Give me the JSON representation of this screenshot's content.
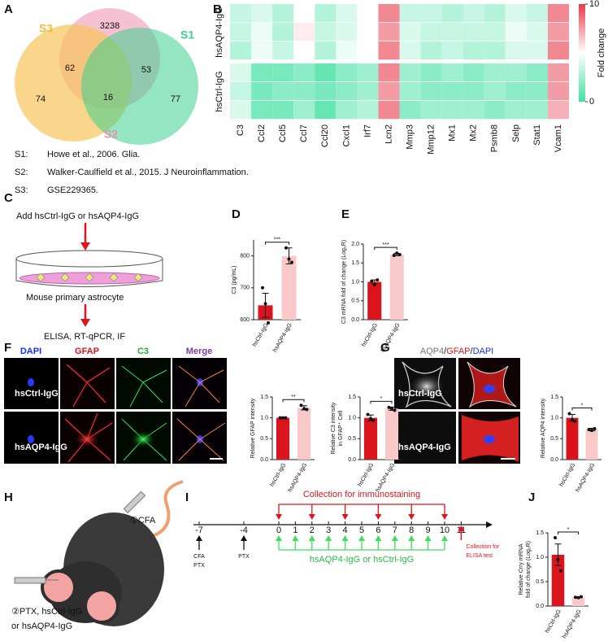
{
  "figure": {
    "panels": [
      "A",
      "B",
      "C",
      "D",
      "E",
      "F",
      "G",
      "H",
      "I",
      "J"
    ],
    "venn": {
      "sets": [
        "S3",
        "S1",
        "S2"
      ],
      "counts": [
        3238,
        62,
        16,
        53,
        74,
        77
      ]
    },
    "notes": [
      {
        "key": "S1:",
        "text": "Howe et al., 2006. Glia."
      },
      {
        "key": "S2:",
        "text": "Walker-Caulfield et al., 2015. J Neuroinflammation."
      },
      {
        "key": "S3:",
        "text": "GSE229365."
      }
    ],
    "panel_c": {
      "top": "Add hsCtrl-IgG or hsAQP4-IgG",
      "middle": "Mouse primary astrocyte",
      "bottom": "ELISA, RT-qPCR, IF"
    },
    "panel_f": {
      "channels": [
        "DAPI",
        "GFAP",
        "C3",
        "Merge"
      ],
      "rows": [
        "hsCtrl-IgG",
        "hsAQP4-IgG"
      ]
    },
    "panel_g": {
      "channels": [
        "AQP4",
        "/",
        "GFAP",
        "/",
        "DAPI"
      ],
      "rows": [
        "hsCtrl-IgG",
        "hsAQP4-IgG"
      ]
    },
    "panel_h": {
      "step1": "①CFA",
      "step2": "②PTX, hsCtrl-IgG",
      "step2b": "or hsAQP4-IgG"
    },
    "panel_i": {
      "ticks": [
        -7,
        -4,
        0,
        1,
        2,
        3,
        4,
        5,
        6,
        7,
        8,
        9,
        10,
        11
      ],
      "collection_days": [
        0,
        2,
        4,
        6,
        8,
        10
      ],
      "immuno_label": "Collection for immunostaining",
      "injection_days": [
        0,
        1,
        2,
        3,
        4,
        5,
        6,
        7,
        8,
        9,
        10
      ],
      "injection_label": "hsAQP4-IgG or hsCtrl-IgG",
      "prime_days": [
        -7,
        -4
      ],
      "prime_labels": [
        [
          "CFA",
          "PTX"
        ],
        [
          "PTX"
        ]
      ],
      "elisa_day": 11,
      "elisa_label": [
        "Collection for",
        "ELISA test"
      ]
    }
  },
  "chart_data": [
    {
      "type": "heatmap",
      "columns": [
        "C3",
        "Ccl2",
        "Ccl5",
        "Ccl7",
        "Ccl20",
        "Cxcl1",
        "Irf7",
        "Lcn2",
        "Mmp3",
        "Mmp12",
        "Mx1",
        "Mx2",
        "Psmb8",
        "Selp",
        "Stat1",
        "Vcam1"
      ],
      "groups": [
        {
          "name": "hsAQP4-IgG",
          "values": [
            [
              3.5,
              4.0,
              3.0,
              5.0,
              3.0,
              4.0,
              5.0,
              8.0,
              3.5,
              3.5,
              3.0,
              3.5,
              3.0,
              4.0,
              3.5,
              8.0
            ],
            [
              3.5,
              4.5,
              3.0,
              5.5,
              3.5,
              4.0,
              5.0,
              7.5,
              4.0,
              3.5,
              3.5,
              3.5,
              3.5,
              4.5,
              4.0,
              7.5
            ],
            [
              3.0,
              4.5,
              3.5,
              5.0,
              3.0,
              4.5,
              5.0,
              8.0,
              4.0,
              3.0,
              3.5,
              3.0,
              3.0,
              4.0,
              4.0,
              8.0
            ]
          ]
        },
        {
          "name": "hsCtrl-IgG",
          "values": [
            [
              4.0,
              1.5,
              1.5,
              2.0,
              1.0,
              2.0,
              2.5,
              8.0,
              2.5,
              2.0,
              2.5,
              2.0,
              2.5,
              2.5,
              2.0,
              7.5
            ],
            [
              3.5,
              1.5,
              2.0,
              2.0,
              1.5,
              2.0,
              2.5,
              7.5,
              2.5,
              2.0,
              2.0,
              2.0,
              2.5,
              2.0,
              2.0,
              7.5
            ],
            [
              4.0,
              1.5,
              1.5,
              2.5,
              1.0,
              2.5,
              3.0,
              8.0,
              2.0,
              2.5,
              2.5,
              2.5,
              2.0,
              2.5,
              2.5,
              7.0
            ]
          ]
        }
      ],
      "lim": [
        0,
        10
      ],
      "colors": [
        "#3ee0a1",
        "#ffffff",
        "#e8394a"
      ],
      "colorbar": {
        "label": "Fold change",
        "ticks": [
          0,
          10
        ]
      }
    },
    {
      "type": "bar",
      "ylabel": [
        "C3 (pg/mL)"
      ],
      "categories": [
        "hsCtrl-IgG",
        "hsAQP4-IgG"
      ],
      "values": [
        645,
        800
      ],
      "errors": [
        38,
        25
      ],
      "points": [
        [
          700,
          650,
          590
        ],
        [
          825,
          790,
          780
        ]
      ],
      "colors": [
        "#d9141c",
        "#f9c9c9"
      ],
      "ylim": [
        600,
        850
      ],
      "yticks": [
        600,
        700,
        800
      ],
      "significance": "***"
    },
    {
      "type": "bar",
      "ylabel": [
        "C3 mRNA fold of change (Log₂R)"
      ],
      "categories": [
        "hsCtrl-IgG",
        "hsAQP4-IgG"
      ],
      "values": [
        1.0,
        1.72
      ],
      "errors": [
        0.05,
        0.03
      ],
      "points": [
        [
          1.02,
          0.92,
          1.05
        ],
        [
          1.7,
          1.76,
          1.72
        ]
      ],
      "colors": [
        "#d9141c",
        "#f9c9c9"
      ],
      "ylim": [
        0,
        2
      ],
      "yticks": [
        {
          "value": 0,
          "label": "0.0"
        },
        {
          "value": 0.5,
          "label": "0.5"
        },
        {
          "value": 1,
          "label": "1.0"
        },
        {
          "value": 1.5,
          "label": "1.5"
        },
        {
          "value": 2,
          "label": "2.0"
        }
      ],
      "significance": "***"
    },
    {
      "type": "bar",
      "ylabel": [
        "Relative GFAP intensity"
      ],
      "categories": [
        "hsCtrl-IgG",
        "hsAQP4-IgG"
      ],
      "values": [
        1.0,
        1.24
      ],
      "errors": [
        0.01,
        0.05
      ],
      "points": [
        [
          1.0,
          1.0,
          1.0
        ],
        [
          1.3,
          1.22,
          1.2
        ]
      ],
      "colors": [
        "#d9141c",
        "#f9c9c9"
      ],
      "ylim": [
        0,
        1.5
      ],
      "yticks": [
        {
          "value": 0,
          "label": "0.0"
        },
        {
          "value": 0.5,
          "label": "0.5"
        },
        {
          "value": 1,
          "label": "1.0"
        },
        {
          "value": 1.5,
          "label": "1.5"
        }
      ],
      "significance": "**"
    },
    {
      "type": "bar",
      "ylabel": [
        "Relative C3 intensity",
        "in GFAP⁺ Cell"
      ],
      "categories": [
        "hsCtrl-IgG",
        "hsAQP4-IgG"
      ],
      "values": [
        1.0,
        1.22
      ],
      "errors": [
        0.07,
        0.04
      ],
      "points": [
        [
          1.08,
          0.98,
          0.94
        ],
        [
          1.25,
          1.22,
          1.18
        ]
      ],
      "colors": [
        "#d9141c",
        "#f9c9c9"
      ],
      "ylim": [
        0,
        1.5
      ],
      "yticks": [
        {
          "value": 0,
          "label": "0.0"
        },
        {
          "value": 0.5,
          "label": "0.5"
        },
        {
          "value": 1,
          "label": "1.0"
        },
        {
          "value": 1.5,
          "label": "1.5"
        }
      ],
      "significance": "*"
    },
    {
      "type": "bar",
      "ylabel": [
        "Relative AQP4 intensity"
      ],
      "categories": [
        "hsCtrl-IgG",
        "hsAQP4-IgG"
      ],
      "values": [
        1.0,
        0.72
      ],
      "errors": [
        0.08,
        0.03
      ],
      "points": [
        [
          1.1,
          0.95,
          0.92
        ],
        [
          0.72,
          0.7,
          0.74
        ]
      ],
      "colors": [
        "#d9141c",
        "#f9c9c9"
      ],
      "ylim": [
        0,
        1.5
      ],
      "yticks": [
        {
          "value": 0,
          "label": "0.0"
        },
        {
          "value": 0.5,
          "label": "0.5"
        },
        {
          "value": 1,
          "label": "1.0"
        },
        {
          "value": 1.5,
          "label": "1.5"
        }
      ],
      "significance": "*"
    },
    {
      "type": "bar",
      "ylabel": [
        "Relative Crry mRNA",
        "fold of change (Log₂R)"
      ],
      "categories": [
        "hsCtrl-IgG",
        "hsAQP4-IgG"
      ],
      "values": [
        1.05,
        0.18
      ],
      "errors": [
        0.22,
        0.01
      ],
      "points": [
        [
          1.4,
          0.95,
          0.72
        ],
        [
          0.18,
          0.17,
          0.19
        ]
      ],
      "colors": [
        "#d9141c",
        "#f9c9c9"
      ],
      "ylim": [
        0,
        1.5
      ],
      "yticks": [
        {
          "value": 0,
          "label": "0.0"
        },
        {
          "value": 0.5,
          "label": "0.5"
        },
        {
          "value": 1,
          "label": "1.0"
        },
        {
          "value": 1.5,
          "label": "1.5"
        }
      ],
      "significance": "*"
    }
  ]
}
